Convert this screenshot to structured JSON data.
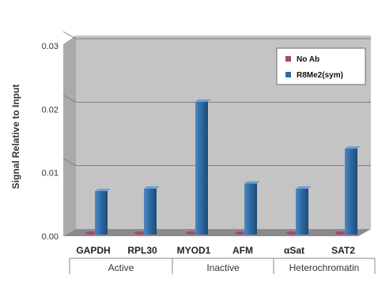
{
  "chart_data": {
    "type": "bar",
    "ylabel": "Signal Relative to Input",
    "ylim": [
      0,
      0.03
    ],
    "yticks": [
      "0.00",
      "0.01",
      "0.02",
      "0.03"
    ],
    "ytick_values": [
      0,
      0.01,
      0.02,
      0.03
    ],
    "grid": true,
    "legend_position": "top-right",
    "categories": [
      "GAPDH",
      "RPL30",
      "MYOD1",
      "AFM",
      "αSat",
      "SAT2"
    ],
    "groups": [
      {
        "label": "Active",
        "span": 2
      },
      {
        "label": "Inactive",
        "span": 2
      },
      {
        "label": "Heterochromatin",
        "span": 2
      }
    ],
    "series": [
      {
        "name": "No Ab",
        "values": [
          0.0,
          0.0,
          0.0,
          0.0,
          0.0,
          0.0
        ],
        "color": "#a8457a"
      },
      {
        "name": "R8Me2(sym)",
        "values": [
          0.0071,
          0.0075,
          0.0212,
          0.0083,
          0.0075,
          0.0138
        ],
        "color": "#2e6aa3"
      }
    ],
    "wall_color": "#c4c4c4",
    "floor_color": "#8a8a8a"
  }
}
